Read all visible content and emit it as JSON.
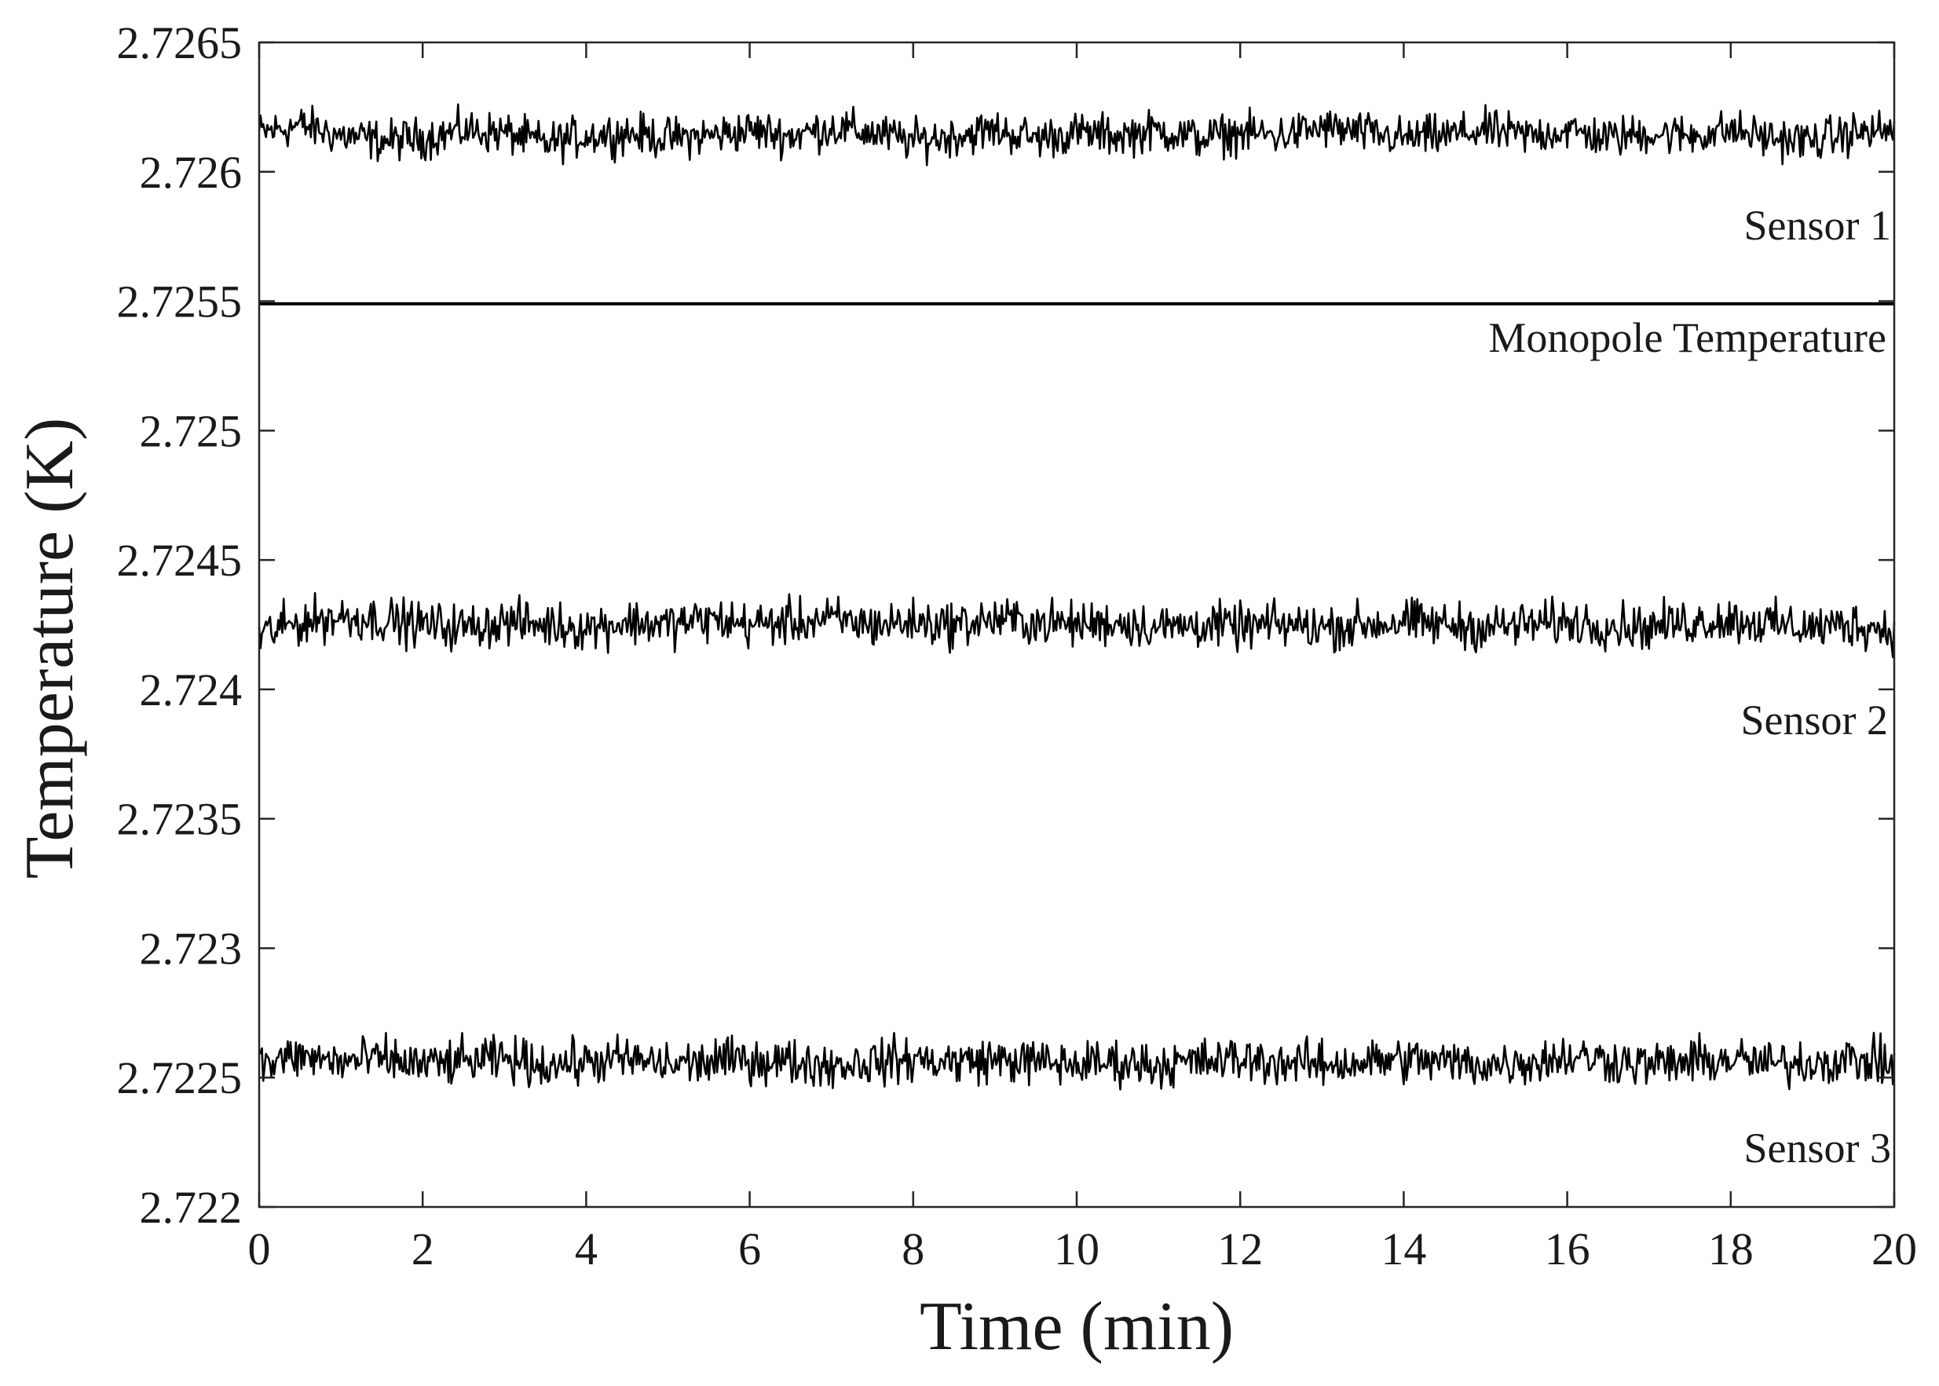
{
  "chart_data": {
    "type": "line",
    "title": "",
    "xlabel": "Time (min)",
    "ylabel": "Temperature (K)",
    "xlim": [
      0,
      20
    ],
    "ylim": [
      2.722,
      2.7265
    ],
    "xticks": [
      0,
      2,
      4,
      6,
      8,
      10,
      12,
      14,
      16,
      18,
      20
    ],
    "xtick_labels": [
      "0",
      "2",
      "4",
      "6",
      "8",
      "10",
      "12",
      "14",
      "16",
      "18",
      "20"
    ],
    "yticks": [
      2.722,
      2.7225,
      2.723,
      2.7235,
      2.724,
      2.7245,
      2.725,
      2.7255,
      2.726,
      2.7265
    ],
    "ytick_labels": [
      "2.722",
      "2.7225",
      "2.723",
      "2.7235",
      "2.724",
      "2.7245",
      "2.725",
      "2.7255",
      "2.726",
      "2.7265"
    ],
    "grid": false,
    "line_color": "#000000",
    "series": [
      {
        "label": "Sensor 1",
        "style": "noisy",
        "x": [
          0,
          0.5,
          1,
          1.5,
          2,
          2.5,
          3,
          3.5,
          4,
          4.5,
          5,
          5.5,
          6,
          6.5,
          7,
          7.5,
          8,
          8.5,
          9,
          9.5,
          10,
          10.5,
          11,
          11.5,
          12,
          12.5,
          13,
          13.5,
          14,
          14.5,
          15,
          15.5,
          16,
          16.5,
          17,
          17.5,
          18,
          18.5,
          19,
          19.5,
          20
        ],
        "y": [
          2.72615,
          2.72618,
          2.72614,
          2.72612,
          2.72613,
          2.72616,
          2.72615,
          2.72611,
          2.72614,
          2.72615,
          2.72613,
          2.72614,
          2.72616,
          2.72614,
          2.72617,
          2.72615,
          2.72612,
          2.72614,
          2.72616,
          2.72613,
          2.72615,
          2.72614,
          2.72616,
          2.72613,
          2.72615,
          2.72614,
          2.72617,
          2.72615,
          2.72613,
          2.72614,
          2.72616,
          2.72614,
          2.72616,
          2.72613,
          2.72615,
          2.72614,
          2.72616,
          2.72613,
          2.72612,
          2.72615,
          2.72616
        ],
        "noise_amplitude": 9e-05
      },
      {
        "label": "Monopole Temperature",
        "style": "flat",
        "x": [
          0,
          20
        ],
        "y": [
          2.72549,
          2.72549
        ]
      },
      {
        "label": "Sensor 2",
        "style": "noisy",
        "x": [
          0,
          0.5,
          1,
          1.5,
          2,
          2.5,
          3,
          3.5,
          4,
          4.5,
          5,
          5.5,
          6,
          6.5,
          7,
          7.5,
          8,
          8.5,
          9,
          9.5,
          10,
          10.5,
          11,
          11.5,
          12,
          12.5,
          13,
          13.5,
          14,
          14.5,
          15,
          15.5,
          16,
          16.5,
          17,
          17.5,
          18,
          18.5,
          19,
          19.5,
          20
        ],
        "y": [
          2.72421,
          2.72426,
          2.72428,
          2.72427,
          2.72425,
          2.72424,
          2.72426,
          2.72425,
          2.72424,
          2.72426,
          2.72425,
          2.72427,
          2.72425,
          2.72426,
          2.72427,
          2.72425,
          2.72426,
          2.72425,
          2.72427,
          2.72426,
          2.72425,
          2.72426,
          2.72424,
          2.72425,
          2.72424,
          2.72425,
          2.72424,
          2.72425,
          2.72426,
          2.72425,
          2.72424,
          2.72425,
          2.72426,
          2.72425,
          2.72424,
          2.72426,
          2.72427,
          2.72425,
          2.72424,
          2.72425,
          2.72423
        ],
        "noise_amplitude": 0.0001
      },
      {
        "label": "Sensor 3",
        "style": "noisy",
        "x": [
          0,
          0.5,
          1,
          1.5,
          2,
          2.5,
          3,
          3.5,
          4,
          4.5,
          5,
          5.5,
          6,
          6.5,
          7,
          7.5,
          8,
          8.5,
          9,
          9.5,
          10,
          10.5,
          11,
          11.5,
          12,
          12.5,
          13,
          13.5,
          14,
          14.5,
          15,
          15.5,
          16,
          16.5,
          17,
          17.5,
          18,
          18.5,
          19,
          19.5,
          20
        ],
        "y": [
          2.72255,
          2.72258,
          2.72256,
          2.72257,
          2.72255,
          2.72256,
          2.72257,
          2.72255,
          2.72256,
          2.72257,
          2.72255,
          2.72256,
          2.72257,
          2.72256,
          2.72255,
          2.72256,
          2.72257,
          2.72256,
          2.72257,
          2.72256,
          2.72255,
          2.72256,
          2.72255,
          2.72256,
          2.72257,
          2.72256,
          2.72255,
          2.72256,
          2.72257,
          2.72256,
          2.72255,
          2.72256,
          2.72258,
          2.72257,
          2.72255,
          2.72256,
          2.72257,
          2.72255,
          2.72256,
          2.72257,
          2.72255
        ],
        "noise_amplitude": 0.0001
      }
    ]
  }
}
